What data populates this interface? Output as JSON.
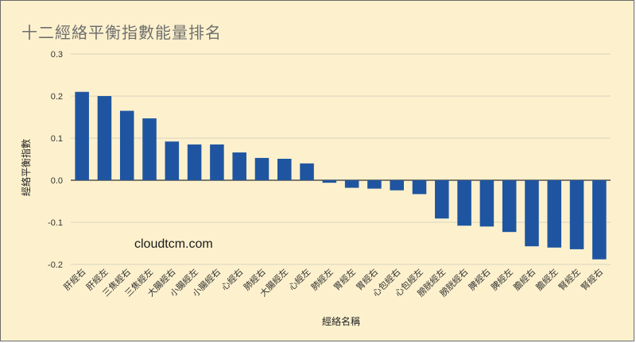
{
  "watermark": "cloudtcm.com",
  "colors": {
    "bar": "#1f55a0",
    "grid": "#d8d2c0",
    "zero": "#333333",
    "background": "#fdf1cd"
  },
  "chart_data": {
    "type": "bar",
    "title": "十二經絡平衡指數能量排名",
    "xlabel": "經絡名稱",
    "ylabel": "經絡平衡指數",
    "ylim": [
      -0.2,
      0.3
    ],
    "yticks": [
      "0.3",
      "0.2",
      "0.1",
      "0.0",
      "-0.1",
      "-0.2"
    ],
    "ytick_values": [
      0.3,
      0.2,
      0.1,
      0.0,
      -0.1,
      -0.2
    ],
    "grid": true,
    "categories": [
      "肝經右",
      "肝經左",
      "三焦經右",
      "三焦經左",
      "大腸經右",
      "小腸經左",
      "小腸經右",
      "心經右",
      "肺經右",
      "大腸經左",
      "心經左",
      "肺經左",
      "胃經左",
      "胃經右",
      "心包經右",
      "心包經左",
      "膀胱經左",
      "膀胱經右",
      "脾經右",
      "脾經左",
      "膽經右",
      "膽經左",
      "腎經左",
      "腎經右"
    ],
    "values": [
      0.21,
      0.2,
      0.165,
      0.147,
      0.092,
      0.085,
      0.085,
      0.066,
      0.053,
      0.051,
      0.04,
      -0.006,
      -0.018,
      -0.02,
      -0.024,
      -0.033,
      -0.091,
      -0.108,
      -0.11,
      -0.123,
      -0.157,
      -0.16,
      -0.164,
      -0.188
    ]
  }
}
